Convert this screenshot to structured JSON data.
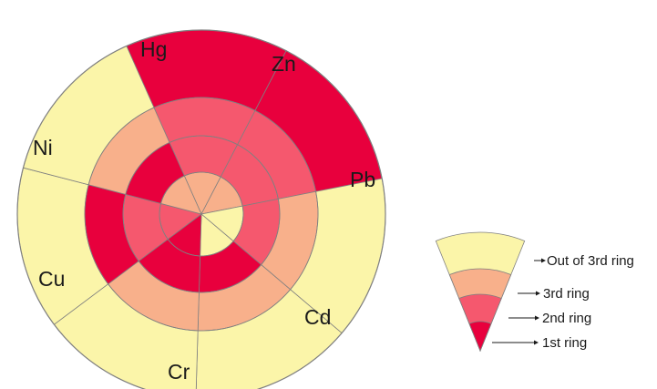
{
  "colors": {
    "ring1": "#e8003d",
    "ring2": "#f5586e",
    "ring3": "#f8b08b",
    "out": "#fbf5a9",
    "stroke": "#808080"
  },
  "sectors": [
    {
      "name": "Hg",
      "rings": [
        3,
        2,
        2,
        1
      ]
    },
    {
      "name": "Zn",
      "rings": [
        3,
        2,
        2,
        1
      ]
    },
    {
      "name": "Pb",
      "rings": [
        0,
        2,
        3,
        4
      ]
    },
    {
      "name": "Cd",
      "rings": [
        0,
        1,
        3,
        4
      ],
      "label_color": "#555555"
    },
    {
      "name": "Cr",
      "rings": [
        1,
        1,
        3,
        4
      ]
    },
    {
      "name": "Cu",
      "rings": [
        2,
        2,
        1,
        4
      ]
    },
    {
      "name": "Ni",
      "rings": [
        3,
        1,
        3,
        4
      ]
    }
  ],
  "legend": {
    "items": [
      "Out of 3rd ring",
      "3rd ring",
      "2nd ring",
      "1st ring"
    ]
  }
}
